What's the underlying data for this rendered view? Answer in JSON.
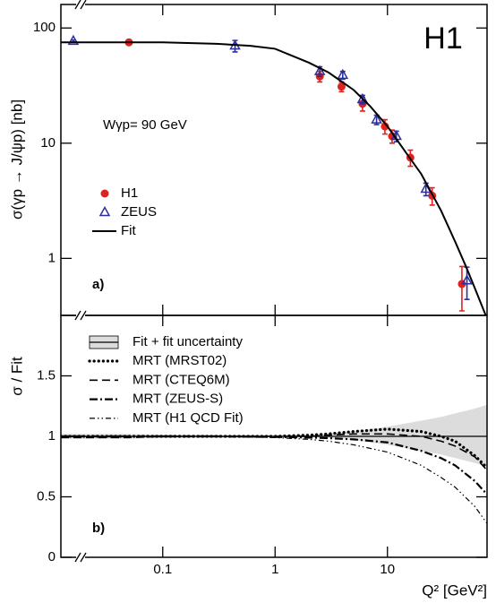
{
  "chart_data": [
    {
      "type": "scatter",
      "ylabel": "σ(γp → J/ψp) [nb]",
      "experiment_label": "H1",
      "annotation": "Wγp= 90 GeV",
      "panel_label": "a)",
      "xscale": "log",
      "yscale": "log",
      "xlim": [
        0.0124,
        77
      ],
      "ylim": [
        0.32,
        160
      ],
      "yticks": [
        1,
        10,
        100
      ],
      "series": [
        {
          "name": "H1",
          "color": "#e0221f",
          "marker": "circle",
          "x": [
            0.05,
            2.5,
            3.9,
            6.0,
            9.5,
            11,
            16,
            25,
            46
          ],
          "values": [
            75,
            38,
            31,
            22,
            14,
            11.5,
            7.5,
            3.5,
            0.6
          ],
          "yerr": [
            2,
            4,
            3,
            3,
            2,
            1.5,
            1.2,
            0.6,
            0.25
          ]
        },
        {
          "name": "ZEUS",
          "color": "#2b2f9a",
          "marker": "open-triangle",
          "x": [
            0.016,
            0.44,
            2.5,
            4.0,
            6.0,
            8.0,
            12,
            22,
            51
          ],
          "values": [
            77,
            70,
            42,
            39,
            24,
            16,
            11.5,
            4.0,
            0.64
          ],
          "yerr": [
            1.5,
            8,
            4,
            3,
            2,
            1.5,
            1.2,
            0.5,
            0.2
          ]
        },
        {
          "name": "Fit",
          "color": "#000000",
          "line": "solid",
          "x": [
            0.0124,
            0.1,
            0.3,
            0.6,
            1,
            2,
            3,
            5,
            7,
            10,
            15,
            20,
            30,
            40,
            50,
            60,
            77
          ],
          "values": [
            75,
            75,
            73,
            70,
            66,
            50,
            41,
            29,
            21,
            14,
            8,
            5.4,
            2.6,
            1.4,
            0.85,
            0.55,
            0.3
          ]
        }
      ]
    },
    {
      "type": "line",
      "ylabel": "σ / Fit",
      "xlabel": "Q² [GeV²]",
      "panel_label": "b)",
      "xscale": "log",
      "xlim": [
        0.0124,
        77
      ],
      "xticks": [
        0.1,
        1,
        10
      ],
      "ylim": [
        0,
        2
      ],
      "yticks": [
        0,
        0.5,
        1,
        1.5
      ],
      "x": [
        0.0124,
        0.05,
        0.1,
        0.3,
        1,
        2,
        3,
        5,
        10,
        20,
        30,
        40,
        60,
        77
      ],
      "reference_line": 1,
      "band": {
        "name": "Fit + fit uncertainty",
        "color": "#dcdcdc",
        "upper": [
          1.02,
          1.02,
          1.015,
          1.012,
          1.01,
          1.015,
          1.025,
          1.04,
          1.08,
          1.13,
          1.16,
          1.19,
          1.23,
          1.26
        ],
        "lower": [
          0.98,
          0.98,
          0.985,
          0.988,
          0.99,
          0.99,
          0.985,
          0.97,
          0.93,
          0.88,
          0.85,
          0.82,
          0.78,
          0.75
        ]
      },
      "series": [
        {
          "name": "MRT (MRST02)",
          "color": "#000000",
          "style": "dotted",
          "values": [
            1.0,
            1.0,
            1.0,
            1.0,
            1.0,
            1.01,
            1.02,
            1.04,
            1.06,
            1.04,
            1.0,
            0.96,
            0.84,
            0.74
          ]
        },
        {
          "name": "MRT (CTEQ6M)",
          "color": "#000000",
          "style": "dashed",
          "values": [
            0.99,
            0.99,
            1.0,
            1.0,
            1.0,
            1.0,
            1.01,
            1.02,
            1.02,
            1.0,
            0.96,
            0.92,
            0.83,
            0.72
          ]
        },
        {
          "name": "MRT (ZEUS-S)",
          "color": "#000000",
          "style": "dashdot",
          "values": [
            1.0,
            1.0,
            1.0,
            1.0,
            0.995,
            0.99,
            0.985,
            0.975,
            0.95,
            0.88,
            0.82,
            0.76,
            0.63,
            0.52
          ]
        },
        {
          "name": "MRT (H1 QCD Fit)",
          "color": "#000000",
          "style": "dashdotdot",
          "values": [
            1.0,
            1.0,
            1.0,
            1.0,
            0.99,
            0.975,
            0.96,
            0.93,
            0.87,
            0.76,
            0.66,
            0.58,
            0.42,
            0.28
          ]
        }
      ]
    }
  ]
}
